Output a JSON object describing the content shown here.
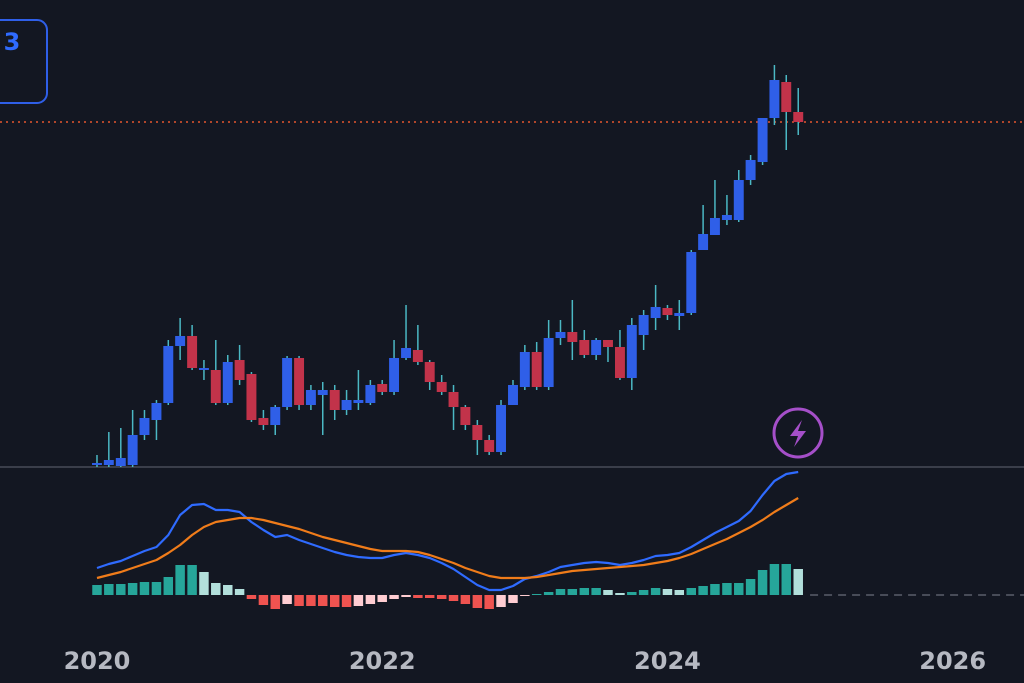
{
  "chart_data": [
    {
      "type": "candlestick",
      "badge": "3",
      "x": [
        2020,
        2020.083,
        2020.167,
        2020.25,
        2020.333,
        2020.417,
        2020.5,
        2020.583,
        2020.667,
        2020.75,
        2020.833,
        2020.917,
        2021,
        2021.083,
        2021.167,
        2021.25,
        2021.333,
        2021.417,
        2021.5,
        2021.583,
        2021.667,
        2021.75,
        2021.833,
        2021.917,
        2022,
        2022.083,
        2022.167,
        2022.25,
        2022.333,
        2022.417,
        2022.5,
        2022.583,
        2022.667,
        2022.75,
        2022.833,
        2022.917,
        2023,
        2023.083,
        2023.167,
        2023.25,
        2023.333,
        2023.417,
        2023.5,
        2023.583,
        2023.667,
        2023.75,
        2023.833,
        2023.917,
        2024,
        2024.083,
        2024.167,
        2024.25,
        2024.333,
        2024.417,
        2024.5,
        2024.583,
        2024.667,
        2024.75,
        2024.833,
        2024.917
      ],
      "open": [
        2,
        2,
        1,
        2,
        32,
        47,
        64,
        121,
        131,
        97,
        97,
        64,
        107,
        93,
        49,
        42,
        60,
        109,
        62,
        72,
        77,
        57,
        64,
        64,
        83,
        75,
        109,
        117,
        105,
        85,
        75,
        60,
        42,
        27,
        15,
        62,
        80,
        115,
        80,
        129,
        135,
        127,
        112,
        127,
        120,
        89,
        132,
        149,
        159,
        151,
        154,
        217,
        232,
        247,
        247,
        287,
        305,
        349,
        385,
        355
      ],
      "high": [
        12,
        35,
        39,
        57,
        57,
        67,
        127,
        149,
        142,
        107,
        127,
        112,
        122,
        95,
        57,
        62,
        111,
        111,
        82,
        85,
        82,
        77,
        97,
        87,
        87,
        127,
        162,
        142,
        107,
        92,
        82,
        62,
        47,
        32,
        67,
        87,
        122,
        125,
        147,
        147,
        167,
        137,
        129,
        127,
        137,
        149,
        157,
        182,
        162,
        167,
        217,
        262,
        287,
        272,
        297,
        312,
        349,
        402,
        392,
        379
      ],
      "low": [
        0,
        0,
        0,
        0,
        27,
        27,
        62,
        107,
        97,
        87,
        62,
        62,
        82,
        45,
        37,
        32,
        57,
        57,
        57,
        32,
        47,
        52,
        57,
        62,
        72,
        72,
        107,
        102,
        77,
        72,
        37,
        37,
        12,
        12,
        12,
        62,
        77,
        77,
        77,
        122,
        107,
        109,
        107,
        105,
        87,
        77,
        117,
        137,
        147,
        137,
        152,
        217,
        232,
        242,
        245,
        282,
        302,
        342,
        317,
        332
      ],
      "close": [
        4,
        7,
        9,
        32,
        49,
        64,
        121,
        131,
        99,
        99,
        64,
        105,
        87,
        47,
        42,
        60,
        109,
        62,
        77,
        77,
        57,
        67,
        67,
        82,
        75,
        109,
        119,
        105,
        85,
        75,
        60,
        42,
        27,
        15,
        62,
        82,
        115,
        80,
        129,
        135,
        125,
        112,
        127,
        120,
        89,
        142,
        152,
        160,
        152,
        154,
        215,
        233,
        249,
        252,
        287,
        307,
        349,
        387,
        355,
        345
      ],
      "up_color": "#2f5fe8",
      "down_color": "#c2334a",
      "wick_color": "#4bb8c4",
      "price_line": 345,
      "price_line_color": "#e4572e",
      "xlim": [
        2019.32,
        2026.5
      ],
      "xticks": [
        2020,
        2022,
        2024,
        2026
      ],
      "ylim": [
        0,
        467
      ]
    },
    {
      "type": "macd",
      "series": [
        {
          "name": "MACD",
          "color": "#2f6bff",
          "values": [
            27,
            31,
            34,
            39,
            44,
            48,
            60,
            80,
            90,
            91,
            85,
            85,
            83,
            73,
            65,
            58,
            60,
            55,
            51,
            47,
            43,
            40,
            38,
            37,
            37,
            40,
            42,
            40,
            37,
            32,
            26,
            18,
            10,
            5,
            5,
            9,
            16,
            19,
            23,
            28,
            30,
            32,
            33,
            32,
            30,
            32,
            35,
            39,
            40,
            42,
            48,
            55,
            62,
            68,
            74,
            84,
            100,
            114,
            121,
            123
          ]
        },
        {
          "name": "Signal",
          "color": "#f07c1a",
          "values": [
            17,
            20,
            23,
            27,
            31,
            35,
            42,
            50,
            60,
            68,
            73,
            75,
            77,
            77,
            75,
            72,
            69,
            66,
            62,
            58,
            55,
            52,
            49,
            46,
            44,
            44,
            44,
            43,
            40,
            36,
            32,
            27,
            23,
            19,
            17,
            17,
            17,
            18,
            20,
            22,
            24,
            25,
            26,
            27,
            28,
            29,
            30,
            32,
            34,
            37,
            41,
            46,
            51,
            56,
            62,
            68,
            75,
            83,
            90,
            97
          ]
        }
      ],
      "histogram": [
        10,
        11,
        11,
        12,
        13,
        13,
        18,
        30,
        30,
        23,
        12,
        10,
        6,
        -4,
        -10,
        -14,
        -9,
        -11,
        -11,
        -11,
        -12,
        -12,
        -11,
        -9,
        -7,
        -4,
        -2,
        -3,
        -3,
        -4,
        -6,
        -9,
        -13,
        -14,
        -12,
        -8,
        -1,
        1,
        3,
        6,
        6,
        7,
        7,
        5,
        2,
        3,
        5,
        7,
        6,
        5,
        7,
        9,
        11,
        12,
        12,
        16,
        25,
        31,
        31,
        26
      ],
      "histogram_colors": {
        "pos_up": "#26a69a",
        "pos_down": "#b2dfdb",
        "neg_down": "#ef5350",
        "neg_up": "#ffcdd2"
      },
      "ylim": [
        -88,
        128
      ]
    }
  ]
}
